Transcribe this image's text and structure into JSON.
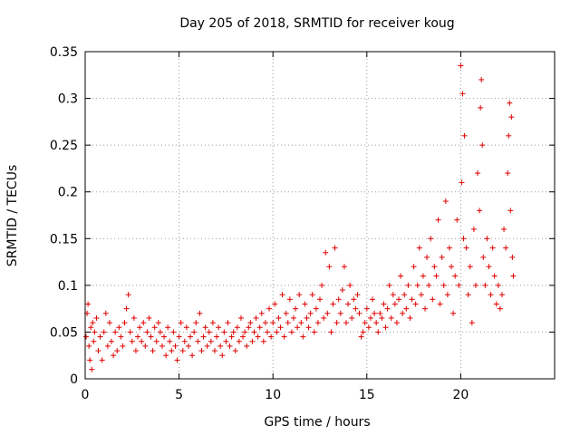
{
  "chart_data": {
    "type": "scatter",
    "title": "Day 205 of 2018, SRMTID for receiver koug",
    "xlabel": "GPS time / hours",
    "ylabel": "SRMTID / TECUs",
    "xlim": [
      0,
      25
    ],
    "ylim": [
      0,
      0.35
    ],
    "xticks": [
      0,
      5,
      10,
      15,
      20
    ],
    "xtick_labels": [
      "0",
      "5",
      "10",
      "15",
      "20"
    ],
    "yticks": [
      0,
      0.05,
      0.1,
      0.15,
      0.2,
      0.25,
      0.3,
      0.35
    ],
    "ytick_labels": [
      "0",
      "0.05",
      "0.1",
      "0.15",
      "0.2",
      "0.25",
      "0.3",
      "0.35"
    ],
    "grid": true,
    "marker": "+",
    "color": "#e00000",
    "series": [
      {
        "name": "SRMTID",
        "points": [
          [
            0.05,
            0.045
          ],
          [
            0.1,
            0.07
          ],
          [
            0.15,
            0.08
          ],
          [
            0.2,
            0.035
          ],
          [
            0.25,
            0.02
          ],
          [
            0.3,
            0.055
          ],
          [
            0.35,
            0.01
          ],
          [
            0.4,
            0.06
          ],
          [
            0.45,
            0.04
          ],
          [
            0.5,
            0.05
          ],
          [
            0.6,
            0.065
          ],
          [
            0.7,
            0.03
          ],
          [
            0.8,
            0.045
          ],
          [
            0.9,
            0.02
          ],
          [
            1.0,
            0.05
          ],
          [
            1.1,
            0.07
          ],
          [
            1.2,
            0.035
          ],
          [
            1.3,
            0.06
          ],
          [
            1.4,
            0.04
          ],
          [
            1.5,
            0.025
          ],
          [
            1.6,
            0.05
          ],
          [
            1.7,
            0.03
          ],
          [
            1.8,
            0.055
          ],
          [
            1.9,
            0.045
          ],
          [
            2.0,
            0.035
          ],
          [
            2.1,
            0.06
          ],
          [
            2.2,
            0.075
          ],
          [
            2.3,
            0.09
          ],
          [
            2.4,
            0.05
          ],
          [
            2.5,
            0.04
          ],
          [
            2.6,
            0.065
          ],
          [
            2.7,
            0.03
          ],
          [
            2.8,
            0.045
          ],
          [
            2.9,
            0.055
          ],
          [
            3.0,
            0.04
          ],
          [
            3.1,
            0.06
          ],
          [
            3.2,
            0.035
          ],
          [
            3.3,
            0.05
          ],
          [
            3.4,
            0.065
          ],
          [
            3.5,
            0.045
          ],
          [
            3.6,
            0.03
          ],
          [
            3.7,
            0.055
          ],
          [
            3.8,
            0.04
          ],
          [
            3.9,
            0.06
          ],
          [
            4.0,
            0.05
          ],
          [
            4.1,
            0.035
          ],
          [
            4.2,
            0.045
          ],
          [
            4.3,
            0.025
          ],
          [
            4.4,
            0.055
          ],
          [
            4.5,
            0.04
          ],
          [
            4.6,
            0.03
          ],
          [
            4.7,
            0.05
          ],
          [
            4.8,
            0.035
          ],
          [
            4.9,
            0.02
          ],
          [
            5.0,
            0.045
          ],
          [
            5.1,
            0.06
          ],
          [
            5.2,
            0.03
          ],
          [
            5.3,
            0.04
          ],
          [
            5.4,
            0.055
          ],
          [
            5.5,
            0.035
          ],
          [
            5.6,
            0.045
          ],
          [
            5.7,
            0.025
          ],
          [
            5.8,
            0.05
          ],
          [
            5.9,
            0.06
          ],
          [
            6.0,
            0.04
          ],
          [
            6.1,
            0.07
          ],
          [
            6.2,
            0.03
          ],
          [
            6.3,
            0.045
          ],
          [
            6.4,
            0.055
          ],
          [
            6.5,
            0.035
          ],
          [
            6.6,
            0.05
          ],
          [
            6.7,
            0.04
          ],
          [
            6.8,
            0.06
          ],
          [
            6.9,
            0.03
          ],
          [
            7.0,
            0.045
          ],
          [
            7.1,
            0.055
          ],
          [
            7.2,
            0.035
          ],
          [
            7.3,
            0.025
          ],
          [
            7.4,
            0.05
          ],
          [
            7.5,
            0.04
          ],
          [
            7.6,
            0.06
          ],
          [
            7.7,
            0.035
          ],
          [
            7.8,
            0.045
          ],
          [
            7.9,
            0.05
          ],
          [
            8.0,
            0.03
          ],
          [
            8.1,
            0.055
          ],
          [
            8.2,
            0.04
          ],
          [
            8.3,
            0.065
          ],
          [
            8.4,
            0.045
          ],
          [
            8.5,
            0.05
          ],
          [
            8.6,
            0.035
          ],
          [
            8.7,
            0.055
          ],
          [
            8.8,
            0.06
          ],
          [
            8.9,
            0.04
          ],
          [
            9.0,
            0.05
          ],
          [
            9.1,
            0.065
          ],
          [
            9.2,
            0.045
          ],
          [
            9.3,
            0.055
          ],
          [
            9.4,
            0.07
          ],
          [
            9.5,
            0.04
          ],
          [
            9.6,
            0.06
          ],
          [
            9.7,
            0.05
          ],
          [
            9.8,
            0.075
          ],
          [
            9.9,
            0.045
          ],
          [
            10.0,
            0.06
          ],
          [
            10.1,
            0.08
          ],
          [
            10.2,
            0.05
          ],
          [
            10.3,
            0.065
          ],
          [
            10.4,
            0.055
          ],
          [
            10.5,
            0.09
          ],
          [
            10.6,
            0.045
          ],
          [
            10.7,
            0.07
          ],
          [
            10.8,
            0.06
          ],
          [
            10.9,
            0.085
          ],
          [
            11.0,
            0.05
          ],
          [
            11.1,
            0.065
          ],
          [
            11.2,
            0.075
          ],
          [
            11.3,
            0.055
          ],
          [
            11.4,
            0.09
          ],
          [
            11.5,
            0.06
          ],
          [
            11.6,
            0.045
          ],
          [
            11.7,
            0.08
          ],
          [
            11.8,
            0.065
          ],
          [
            11.9,
            0.055
          ],
          [
            12.0,
            0.07
          ],
          [
            12.1,
            0.09
          ],
          [
            12.2,
            0.05
          ],
          [
            12.3,
            0.075
          ],
          [
            12.4,
            0.06
          ],
          [
            12.5,
            0.085
          ],
          [
            12.6,
            0.1
          ],
          [
            12.7,
            0.065
          ],
          [
            12.8,
            0.135
          ],
          [
            12.9,
            0.07
          ],
          [
            13.0,
            0.12
          ],
          [
            13.1,
            0.05
          ],
          [
            13.2,
            0.08
          ],
          [
            13.3,
            0.14
          ],
          [
            13.4,
            0.06
          ],
          [
            13.5,
            0.085
          ],
          [
            13.6,
            0.07
          ],
          [
            13.7,
            0.095
          ],
          [
            13.8,
            0.12
          ],
          [
            13.9,
            0.06
          ],
          [
            14.0,
            0.08
          ],
          [
            14.1,
            0.1
          ],
          [
            14.2,
            0.065
          ],
          [
            14.3,
            0.085
          ],
          [
            14.4,
            0.075
          ],
          [
            14.5,
            0.09
          ],
          [
            14.6,
            0.07
          ],
          [
            14.7,
            0.045
          ],
          [
            14.8,
            0.05
          ],
          [
            14.9,
            0.06
          ],
          [
            15.0,
            0.075
          ],
          [
            15.1,
            0.055
          ],
          [
            15.2,
            0.065
          ],
          [
            15.3,
            0.085
          ],
          [
            15.4,
            0.07
          ],
          [
            15.5,
            0.06
          ],
          [
            15.6,
            0.05
          ],
          [
            15.7,
            0.07
          ],
          [
            15.8,
            0.065
          ],
          [
            15.9,
            0.08
          ],
          [
            16.0,
            0.055
          ],
          [
            16.1,
            0.075
          ],
          [
            16.2,
            0.1
          ],
          [
            16.3,
            0.065
          ],
          [
            16.4,
            0.09
          ],
          [
            16.5,
            0.08
          ],
          [
            16.6,
            0.06
          ],
          [
            16.7,
            0.085
          ],
          [
            16.8,
            0.11
          ],
          [
            16.9,
            0.07
          ],
          [
            17.0,
            0.09
          ],
          [
            17.1,
            0.075
          ],
          [
            17.2,
            0.1
          ],
          [
            17.3,
            0.065
          ],
          [
            17.4,
            0.085
          ],
          [
            17.5,
            0.12
          ],
          [
            17.6,
            0.08
          ],
          [
            17.7,
            0.1
          ],
          [
            17.8,
            0.14
          ],
          [
            17.9,
            0.09
          ],
          [
            18.0,
            0.11
          ],
          [
            18.1,
            0.075
          ],
          [
            18.2,
            0.13
          ],
          [
            18.3,
            0.1
          ],
          [
            18.4,
            0.15
          ],
          [
            18.5,
            0.085
          ],
          [
            18.6,
            0.12
          ],
          [
            18.7,
            0.11
          ],
          [
            18.8,
            0.17
          ],
          [
            18.9,
            0.08
          ],
          [
            19.0,
            0.13
          ],
          [
            19.1,
            0.1
          ],
          [
            19.2,
            0.19
          ],
          [
            19.3,
            0.09
          ],
          [
            19.4,
            0.14
          ],
          [
            19.5,
            0.12
          ],
          [
            19.6,
            0.07
          ],
          [
            19.7,
            0.11
          ],
          [
            19.8,
            0.17
          ],
          [
            19.9,
            0.1
          ],
          [
            20.0,
            0.335
          ],
          [
            20.05,
            0.21
          ],
          [
            20.1,
            0.305
          ],
          [
            20.15,
            0.15
          ],
          [
            20.2,
            0.26
          ],
          [
            20.3,
            0.14
          ],
          [
            20.4,
            0.09
          ],
          [
            20.5,
            0.12
          ],
          [
            20.6,
            0.06
          ],
          [
            20.7,
            0.16
          ],
          [
            20.8,
            0.1
          ],
          [
            20.9,
            0.22
          ],
          [
            21.0,
            0.18
          ],
          [
            21.05,
            0.29
          ],
          [
            21.1,
            0.32
          ],
          [
            21.15,
            0.25
          ],
          [
            21.2,
            0.13
          ],
          [
            21.3,
            0.1
          ],
          [
            21.4,
            0.15
          ],
          [
            21.5,
            0.12
          ],
          [
            21.6,
            0.09
          ],
          [
            21.7,
            0.14
          ],
          [
            21.8,
            0.11
          ],
          [
            21.9,
            0.08
          ],
          [
            22.0,
            0.1
          ],
          [
            22.1,
            0.075
          ],
          [
            22.2,
            0.09
          ],
          [
            22.3,
            0.16
          ],
          [
            22.4,
            0.14
          ],
          [
            22.5,
            0.22
          ],
          [
            22.55,
            0.26
          ],
          [
            22.6,
            0.295
          ],
          [
            22.65,
            0.18
          ],
          [
            22.7,
            0.28
          ],
          [
            22.75,
            0.13
          ],
          [
            22.8,
            0.11
          ]
        ]
      }
    ]
  }
}
